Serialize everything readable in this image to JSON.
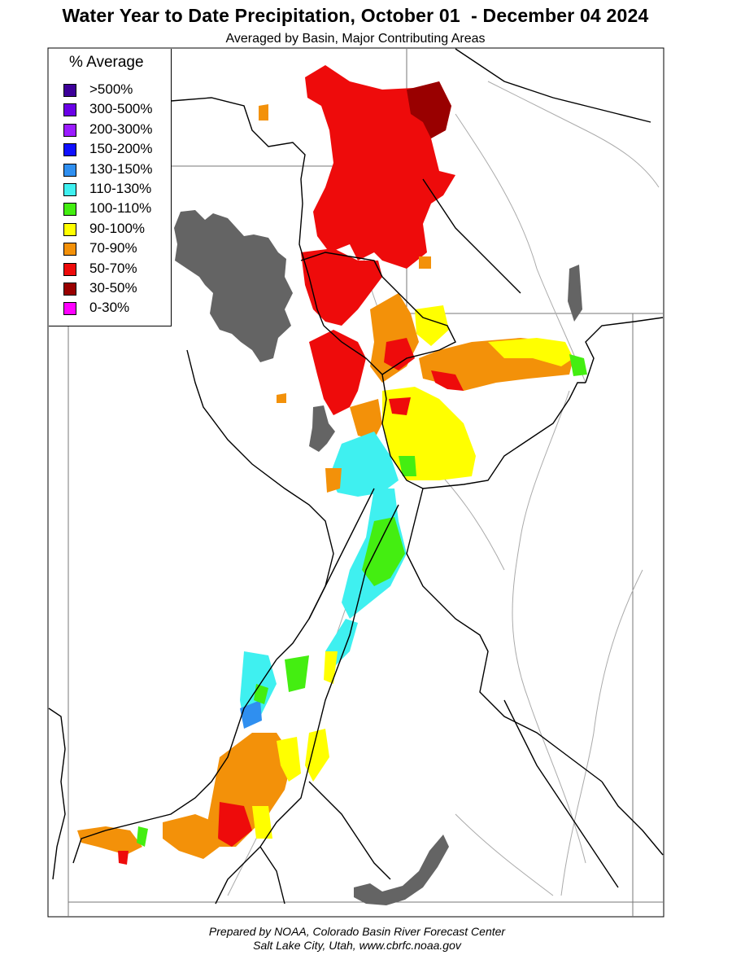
{
  "title": "Water Year to Date Precipitation, October 01  - December 04 2024",
  "subtitle": "Averaged by Basin, Major Contributing Areas",
  "legend": {
    "title": "% Average",
    "items": [
      {
        "label": ">500%",
        "color": "#3d0099"
      },
      {
        "label": "300-500%",
        "color": "#6a00e6"
      },
      {
        "label": "200-300%",
        "color": "#9a1cff"
      },
      {
        "label": "150-200%",
        "color": "#1010ff"
      },
      {
        "label": "130-150%",
        "color": "#2f8ff0"
      },
      {
        "label": "110-130%",
        "color": "#3ff0f0"
      },
      {
        "label": "100-110%",
        "color": "#44ee11"
      },
      {
        "label": "90-100%",
        "color": "#ffff00"
      },
      {
        "label": "70-90%",
        "color": "#f39109"
      },
      {
        "label": "50-70%",
        "color": "#ee0b0b"
      },
      {
        "label": "30-50%",
        "color": "#990000"
      },
      {
        "label": "0-30%",
        "color": "#ff00ff"
      }
    ]
  },
  "colors": {
    "lake": "#646464",
    "boundary": "#000000",
    "river": "#aaaaaa",
    "state_line": "#777777"
  },
  "credit": {
    "line1": "Prepared by NOAA, Colorado Basin River Forecast Center",
    "line2": "Salt Lake City, Utah, www.cbrfc.noaa.gov"
  }
}
